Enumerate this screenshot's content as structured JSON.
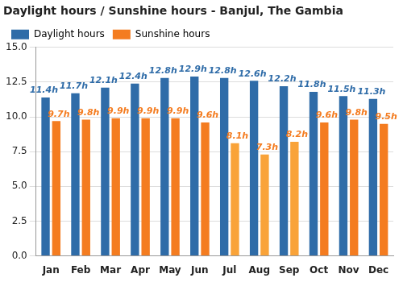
{
  "chart_data": {
    "type": "bar",
    "title": "Daylight hours / Sunshine hours - Banjul, The Gambia",
    "categories": [
      "Jan",
      "Feb",
      "Mar",
      "Apr",
      "May",
      "Jun",
      "Jul",
      "Aug",
      "Sep",
      "Oct",
      "Nov",
      "Dec"
    ],
    "series": [
      {
        "name": "Daylight hours",
        "color": "#2f6ca8",
        "values": [
          11.4,
          11.7,
          12.1,
          12.4,
          12.8,
          12.9,
          12.8,
          12.6,
          12.2,
          11.8,
          11.5,
          11.3
        ],
        "value_labels": [
          "11.4h",
          "11.7h",
          "12.1h",
          "12.4h",
          "12.8h",
          "12.9h",
          "12.8h",
          "12.6h",
          "12.2h",
          "11.8h",
          "11.5h",
          "11.3h"
        ]
      },
      {
        "name": "Sunshine hours",
        "color": "#f47c20",
        "colors": [
          "#f47c20",
          "#f47c20",
          "#f47c20",
          "#f47c20",
          "#f47c20",
          "#f47c20",
          "#f9a339",
          "#f9a339",
          "#f9a339",
          "#f47c20",
          "#f47c20",
          "#f47c20"
        ],
        "values": [
          9.7,
          9.8,
          9.9,
          9.9,
          9.9,
          9.6,
          8.1,
          7.3,
          8.2,
          9.6,
          9.8,
          9.5
        ],
        "value_labels": [
          "9.7h",
          "9.8h",
          "9.9h",
          "9.9h",
          "9.9h",
          "9.6h",
          "8.1h",
          "7.3h",
          "8.2h",
          "9.6h",
          "9.8h",
          "9.5h"
        ]
      }
    ],
    "ylim": [
      0,
      15
    ],
    "yticks": [
      {
        "value": 0,
        "label": "0.0"
      },
      {
        "value": 2.5,
        "label": "2.5"
      },
      {
        "value": 5,
        "label": "5.0"
      },
      {
        "value": 7.5,
        "label": "7.5"
      },
      {
        "value": 10,
        "label": "10.0"
      },
      {
        "value": 12.5,
        "label": "12.5"
      },
      {
        "value": 15,
        "label": "15.0"
      }
    ],
    "grid": true,
    "legend": "top-left",
    "data_labels": true
  }
}
